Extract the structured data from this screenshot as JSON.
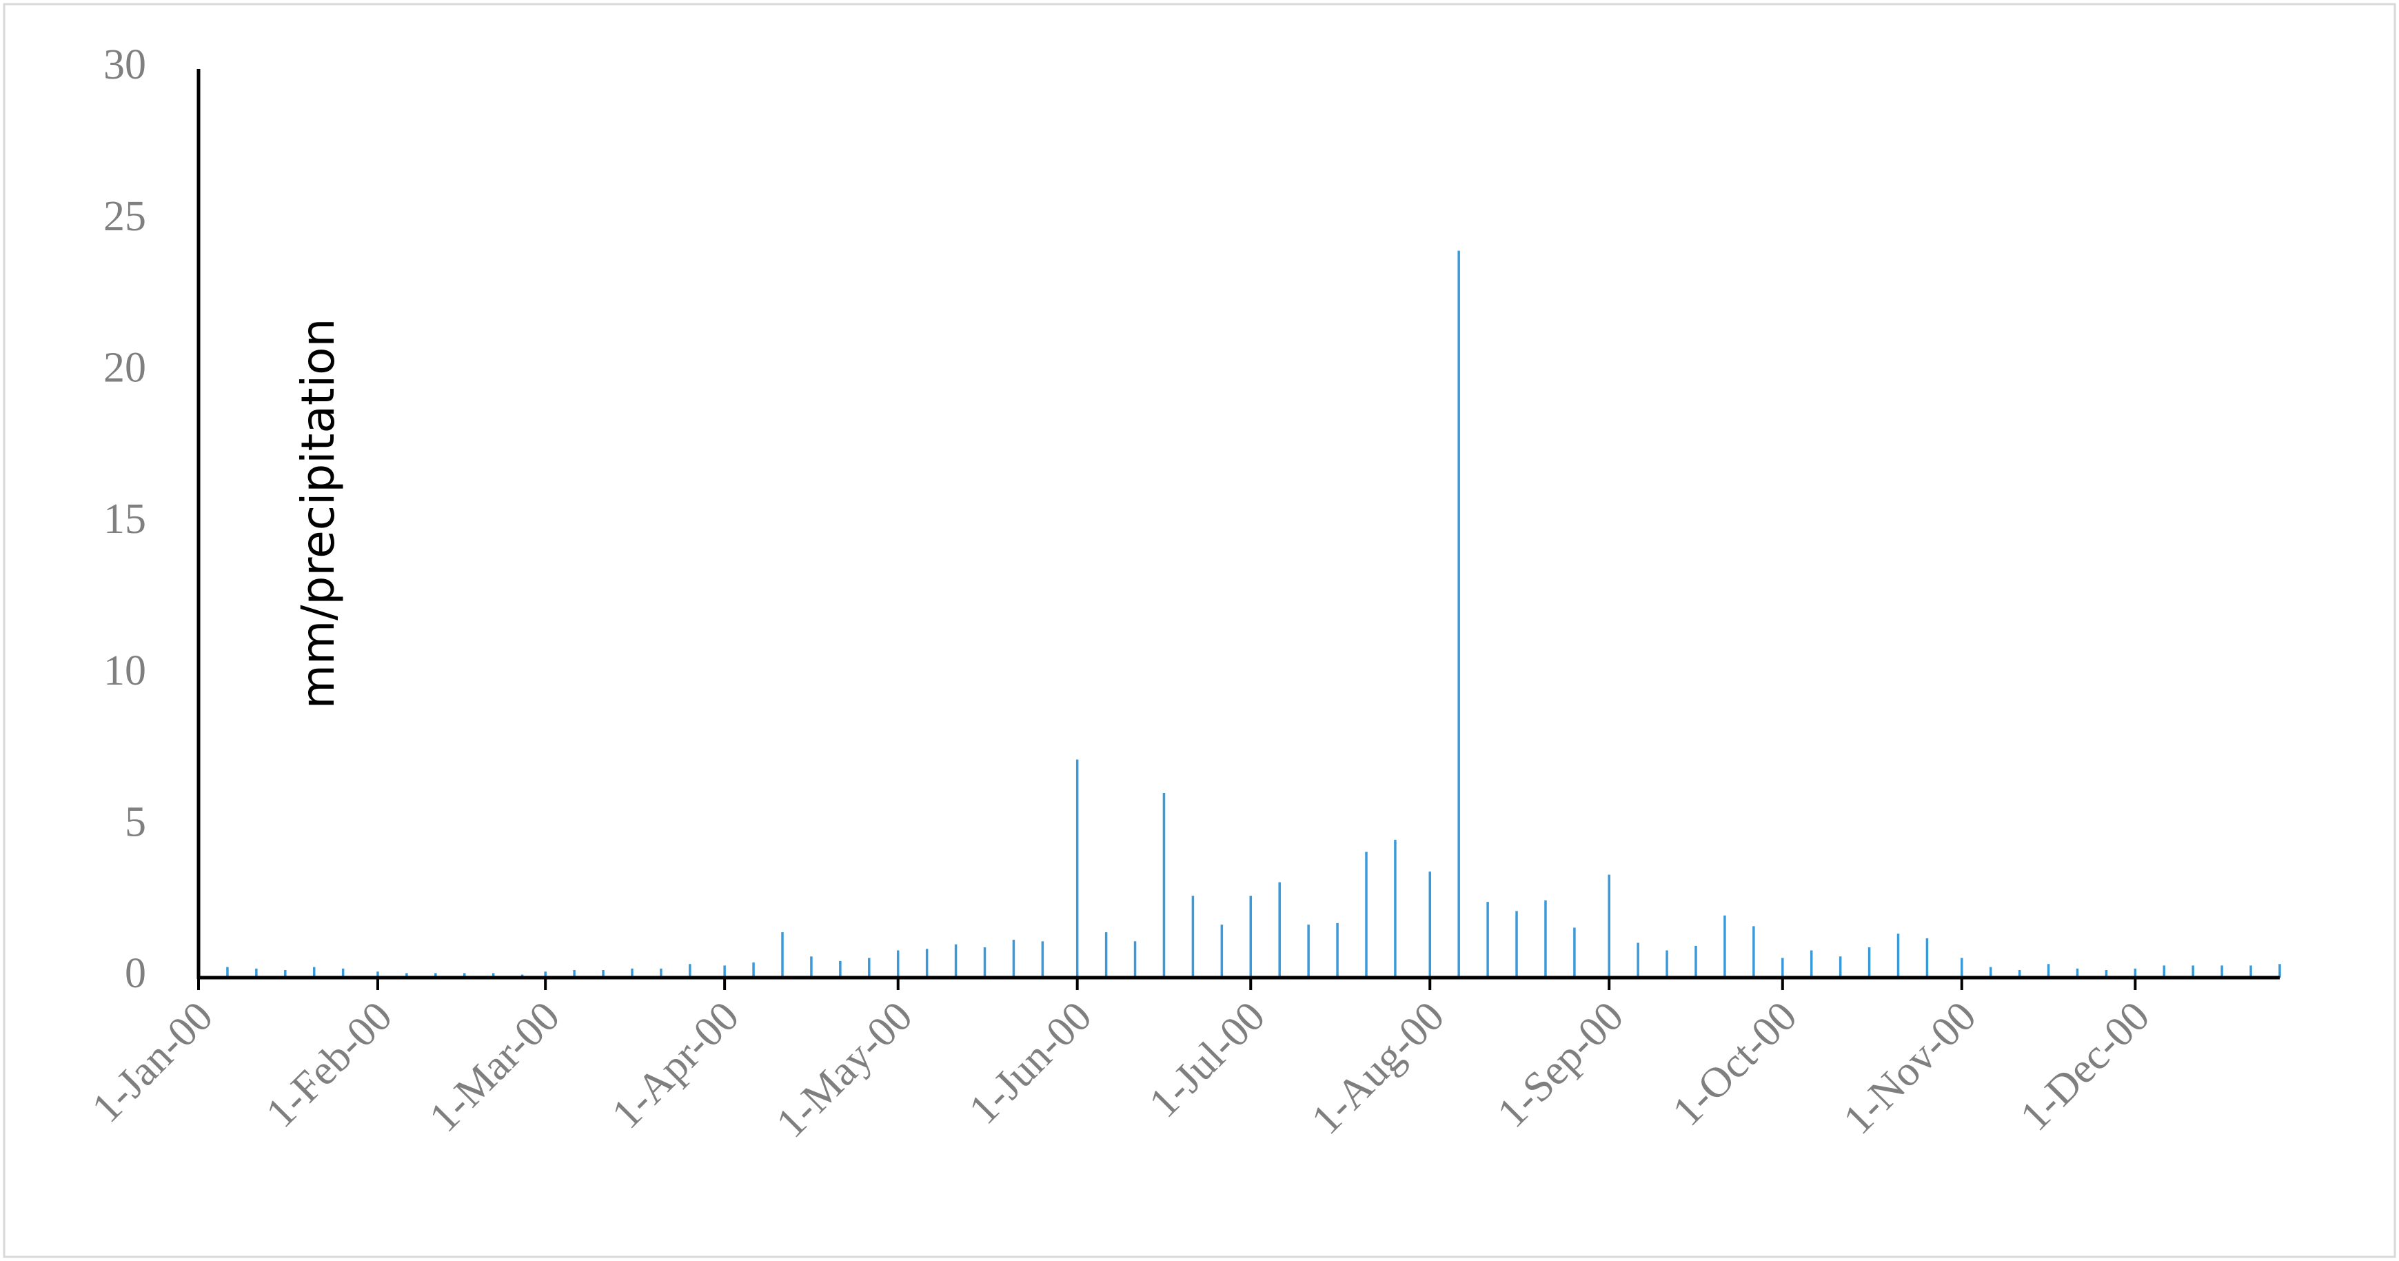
{
  "chart_data": {
    "type": "bar",
    "y_label": "mm/precipitation",
    "color": "#3a9ad9",
    "x": [
      "2000-01-01",
      "2000-01-06",
      "2000-01-11",
      "2000-01-16",
      "2000-01-21",
      "2000-01-26",
      "2000-02-01",
      "2000-02-06",
      "2000-02-11",
      "2000-02-16",
      "2000-02-21",
      "2000-02-26",
      "2000-03-01",
      "2000-03-06",
      "2000-03-11",
      "2000-03-16",
      "2000-03-21",
      "2000-03-26",
      "2000-04-01",
      "2000-04-06",
      "2000-04-11",
      "2000-04-16",
      "2000-04-21",
      "2000-04-26",
      "2000-05-01",
      "2000-05-06",
      "2000-05-11",
      "2000-05-16",
      "2000-05-21",
      "2000-05-26",
      "2000-06-01",
      "2000-06-06",
      "2000-06-11",
      "2000-06-16",
      "2000-06-21",
      "2000-06-26",
      "2000-07-01",
      "2000-07-06",
      "2000-07-11",
      "2000-07-16",
      "2000-07-21",
      "2000-07-26",
      "2000-08-01",
      "2000-08-06",
      "2000-08-11",
      "2000-08-16",
      "2000-08-21",
      "2000-08-26",
      "2000-09-01",
      "2000-09-06",
      "2000-09-11",
      "2000-09-16",
      "2000-09-21",
      "2000-09-26",
      "2000-10-01",
      "2000-10-06",
      "2000-10-11",
      "2000-10-16",
      "2000-10-21",
      "2000-10-26",
      "2000-11-01",
      "2000-11-06",
      "2000-11-11",
      "2000-11-16",
      "2000-11-21",
      "2000-11-26",
      "2000-12-01",
      "2000-12-06",
      "2000-12-11",
      "2000-12-16",
      "2000-12-21",
      "2000-12-26"
    ],
    "values": [
      0.8,
      0.35,
      0.3,
      0.25,
      0.35,
      0.3,
      0.2,
      0.15,
      0.15,
      0.15,
      0.15,
      0.1,
      0.2,
      0.25,
      0.25,
      0.3,
      0.3,
      0.45,
      0.4,
      0.5,
      1.5,
      0.7,
      0.55,
      0.65,
      0.9,
      0.95,
      1.1,
      1.0,
      1.25,
      1.2,
      7.2,
      1.5,
      1.2,
      6.1,
      2.7,
      1.75,
      2.7,
      3.15,
      1.75,
      1.8,
      4.15,
      4.55,
      3.5,
      24,
      2.5,
      2.2,
      2.55,
      1.65,
      3.4,
      1.15,
      0.9,
      1.05,
      2.05,
      1.7,
      0.65,
      0.9,
      0.7,
      1.0,
      1.45,
      1.3,
      0.65,
      0.35,
      0.25,
      0.45,
      0.3,
      0.25,
      0.3,
      0.4,
      0.4,
      0.4,
      0.4,
      0.45
    ],
    "xlim": [
      "2000-01-01",
      "2000-12-26"
    ],
    "xticks": [
      {
        "value": "2000-01-01",
        "label": "1-Jan-00"
      },
      {
        "value": "2000-02-01",
        "label": "1-Feb-00"
      },
      {
        "value": "2000-03-01",
        "label": "1-Mar-00"
      },
      {
        "value": "2000-04-01",
        "label": "1-Apr-00"
      },
      {
        "value": "2000-05-01",
        "label": "1-May-00"
      },
      {
        "value": "2000-06-01",
        "label": "1-Jun-00"
      },
      {
        "value": "2000-07-01",
        "label": "1-Jul-00"
      },
      {
        "value": "2000-08-01",
        "label": "1-Aug-00"
      },
      {
        "value": "2000-09-01",
        "label": "1-Sep-00"
      },
      {
        "value": "2000-10-01",
        "label": "1-Oct-00"
      },
      {
        "value": "2000-11-01",
        "label": "1-Nov-00"
      },
      {
        "value": "2000-12-01",
        "label": "1-Dec-00"
      }
    ],
    "ylim": [
      0,
      30
    ],
    "yticks": [
      0,
      5,
      10,
      15,
      20,
      25,
      30
    ],
    "grid": false
  }
}
